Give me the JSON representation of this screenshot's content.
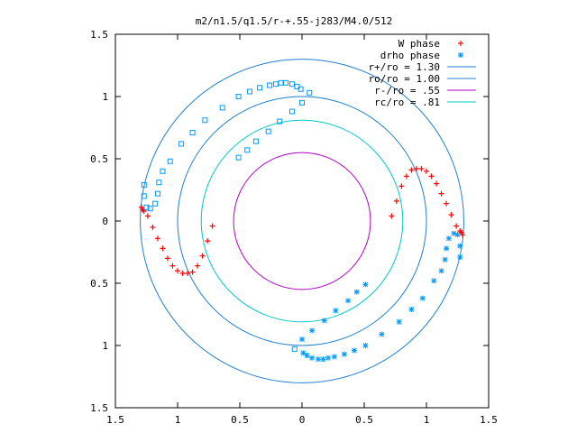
{
  "chart_data": {
    "type": "scatter",
    "title": "m2/n1.5/q1.5/r-+.55-j283/M4.0/512",
    "xlabel": "",
    "ylabel": "",
    "xlim": [
      -1.5,
      1.5
    ],
    "ylim": [
      -1.5,
      1.5
    ],
    "x_ticks": [
      -1.5,
      -1,
      -0.5,
      0,
      0.5,
      1,
      1.5
    ],
    "y_ticks": [
      -1.5,
      -1,
      -0.5,
      0,
      0.5,
      1,
      1.5
    ],
    "x_tick_labels": [
      "1.5",
      "1",
      "0.5",
      "0",
      "0.5",
      "1",
      "1.5"
    ],
    "y_tick_labels": [
      "1.5",
      "1",
      "0.5",
      "0",
      "0.5",
      "1",
      "1.5"
    ],
    "grid": false,
    "legend_position": "top-right",
    "series": [
      {
        "name": "W phase",
        "marker": "plus",
        "color": "#ff0000",
        "x": [
          0.72,
          0.76,
          0.8,
          0.84,
          0.88,
          0.92,
          0.96,
          1.0,
          1.04,
          1.08,
          1.12,
          1.16,
          1.2,
          1.24,
          1.27,
          1.28,
          1.29,
          -0.72,
          -0.76,
          -0.8,
          -0.84,
          -0.88,
          -0.92,
          -0.96,
          -1.0,
          -1.04,
          -1.08,
          -1.12,
          -1.16,
          -1.2,
          -1.24,
          -1.27,
          -1.28,
          -1.29
        ],
        "y": [
          0.04,
          0.16,
          0.28,
          0.36,
          0.41,
          0.42,
          0.42,
          0.4,
          0.36,
          0.3,
          0.22,
          0.14,
          0.05,
          -0.04,
          -0.08,
          -0.09,
          -0.11,
          -0.04,
          -0.16,
          -0.28,
          -0.36,
          -0.41,
          -0.42,
          -0.42,
          -0.4,
          -0.36,
          -0.3,
          -0.22,
          -0.14,
          -0.05,
          0.04,
          0.08,
          0.09,
          0.11
        ]
      },
      {
        "name": "drho phase",
        "marker": "star",
        "color": "#0099ff",
        "x": [
          1.27,
          1.27,
          1.25,
          1.22,
          1.18,
          1.16,
          1.15,
          1.12,
          1.06,
          0.97,
          0.88,
          0.78,
          0.64,
          0.51,
          0.42,
          0.34,
          0.26,
          0.21,
          0.17,
          0.13,
          0.08,
          0.04,
          0.01,
          -0.06,
          0.0,
          0.08,
          0.18,
          0.27,
          0.37,
          0.44,
          0.51,
          -1.27,
          -1.27,
          -1.25,
          -1.22,
          -1.18,
          -1.16,
          -1.15,
          -1.12,
          -1.06,
          -0.97,
          -0.88,
          -0.78,
          -0.64,
          -0.51,
          -0.42,
          -0.34,
          -0.26,
          -0.21,
          -0.17,
          -0.13,
          -0.08,
          -0.04,
          -0.01,
          0.06,
          0.0,
          -0.08,
          -0.18,
          -0.27,
          -0.37,
          -0.44,
          -0.51
        ],
        "y": [
          -0.29,
          -0.2,
          -0.11,
          -0.1,
          -0.14,
          -0.22,
          -0.31,
          -0.4,
          -0.48,
          -0.62,
          -0.71,
          -0.81,
          -0.91,
          -1.0,
          -1.04,
          -1.07,
          -1.09,
          -1.1,
          -1.11,
          -1.11,
          -1.1,
          -1.08,
          -1.06,
          -1.03,
          -0.95,
          -0.88,
          -0.8,
          -0.72,
          -0.64,
          -0.57,
          -0.51,
          0.29,
          0.2,
          0.11,
          0.1,
          0.14,
          0.22,
          0.31,
          0.4,
          0.48,
          0.62,
          0.71,
          0.81,
          0.91,
          1.0,
          1.04,
          1.07,
          1.09,
          1.1,
          1.11,
          1.11,
          1.1,
          1.08,
          1.06,
          1.03,
          0.95,
          0.88,
          0.8,
          0.72,
          0.64,
          0.57,
          0.51
        ]
      },
      {
        "name": "r+/ro = 1.30",
        "type": "circle",
        "radius": 1.3,
        "color": "#1f7fd0"
      },
      {
        "name": "ro/ro = 1.00",
        "type": "circle",
        "radius": 1.0,
        "color": "#1f7fd0"
      },
      {
        "name": "r-/ro =  .55",
        "type": "circle",
        "radius": 0.55,
        "color": "#b000c8"
      },
      {
        "name": "rc/ro =  .81",
        "type": "circle",
        "radius": 0.81,
        "color": "#00c8c8"
      }
    ]
  }
}
